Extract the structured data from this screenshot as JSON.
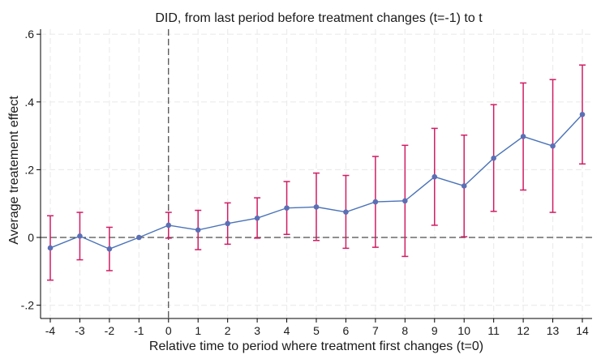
{
  "chart_data": {
    "type": "line",
    "title": "DID, from last period before treatment changes (t=-1) to t",
    "xlabel": "Relative time to period where treatment first changes (t=0)",
    "ylabel": "Average treatement effect",
    "xlim": [
      -4,
      14
    ],
    "ylim": [
      -0.2,
      0.6
    ],
    "x_ticks": [
      -4,
      -3,
      -2,
      -1,
      0,
      1,
      2,
      3,
      4,
      5,
      6,
      7,
      8,
      9,
      10,
      11,
      12,
      13,
      14
    ],
    "x_tick_labels": [
      "-4",
      "-3",
      "-2",
      "-1",
      "0",
      "1",
      "2",
      "3",
      "4",
      "5",
      "6",
      "7",
      "8",
      "9",
      "10",
      "11",
      "12",
      "13",
      "14"
    ],
    "y_ticks": [
      -0.2,
      0,
      0.2,
      0.4,
      0.6
    ],
    "y_tick_labels": [
      "-.2",
      "0",
      ".2",
      ".4",
      ".6"
    ],
    "grid": true,
    "reference_lines": {
      "vertical_x": 0,
      "horizontal_y": 0,
      "style": "dashed"
    },
    "series": [
      {
        "type": "point-estimate-with-ci",
        "x": [
          -4,
          -3,
          -2,
          -1,
          0,
          1,
          2,
          3,
          4,
          5,
          6,
          7,
          8,
          9,
          10,
          11,
          12,
          13,
          14
        ],
        "values": [
          -0.031,
          0.004,
          -0.034,
          0.0,
          0.036,
          0.022,
          0.041,
          0.057,
          0.087,
          0.09,
          0.075,
          0.105,
          0.108,
          0.179,
          0.152,
          0.234,
          0.298,
          0.27,
          0.363
        ],
        "ci_lower": [
          -0.126,
          -0.066,
          -0.098,
          0.0,
          -0.002,
          -0.036,
          -0.02,
          -0.002,
          0.009,
          -0.009,
          -0.032,
          -0.029,
          -0.056,
          0.036,
          0.002,
          0.077,
          0.14,
          0.074,
          0.217
        ],
        "ci_upper": [
          0.064,
          0.074,
          0.03,
          0.0,
          0.074,
          0.08,
          0.102,
          0.117,
          0.165,
          0.19,
          0.183,
          0.239,
          0.272,
          0.322,
          0.302,
          0.392,
          0.456,
          0.466,
          0.509
        ],
        "line_color": "#4a73b8",
        "marker_color": "#5b6fb5",
        "ci_color": "#d11d63"
      }
    ]
  }
}
